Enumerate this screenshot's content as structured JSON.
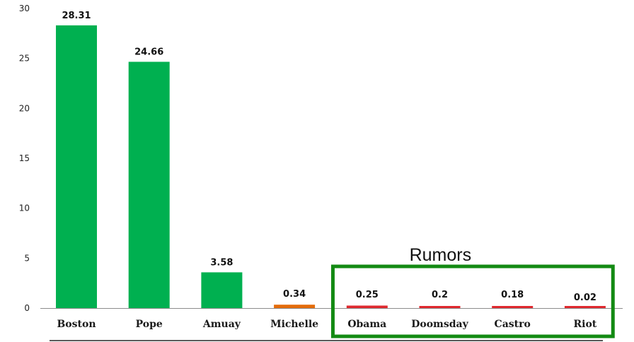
{
  "chart_data": {
    "type": "bar",
    "categories": [
      "Boston",
      "Pope",
      "Amuay",
      "Michelle",
      "Obama",
      "Doomsday",
      "Castro",
      "Riot"
    ],
    "values": [
      28.31,
      24.66,
      3.58,
      0.34,
      0.25,
      0.2,
      0.18,
      0.02
    ],
    "data_labels": [
      "28.31",
      "24.66",
      "3.58",
      "0.34",
      "0.25",
      "0.2",
      "0.18",
      "0.02"
    ],
    "bar_colors": [
      "#00b050",
      "#00b050",
      "#00b050",
      "#e46c0a",
      "#e0292f",
      "#e0292f",
      "#e0292f",
      "#e0292f"
    ],
    "ylim": [
      0,
      30
    ],
    "yticks": [
      0,
      5,
      10,
      15,
      20,
      25,
      30
    ],
    "title": "",
    "xlabel": "",
    "ylabel": "",
    "grid": false,
    "annotation": {
      "text": "Rumors",
      "box_color": "#138a13",
      "categories": [
        "Obama",
        "Doomsday",
        "Castro",
        "Riot"
      ]
    }
  }
}
